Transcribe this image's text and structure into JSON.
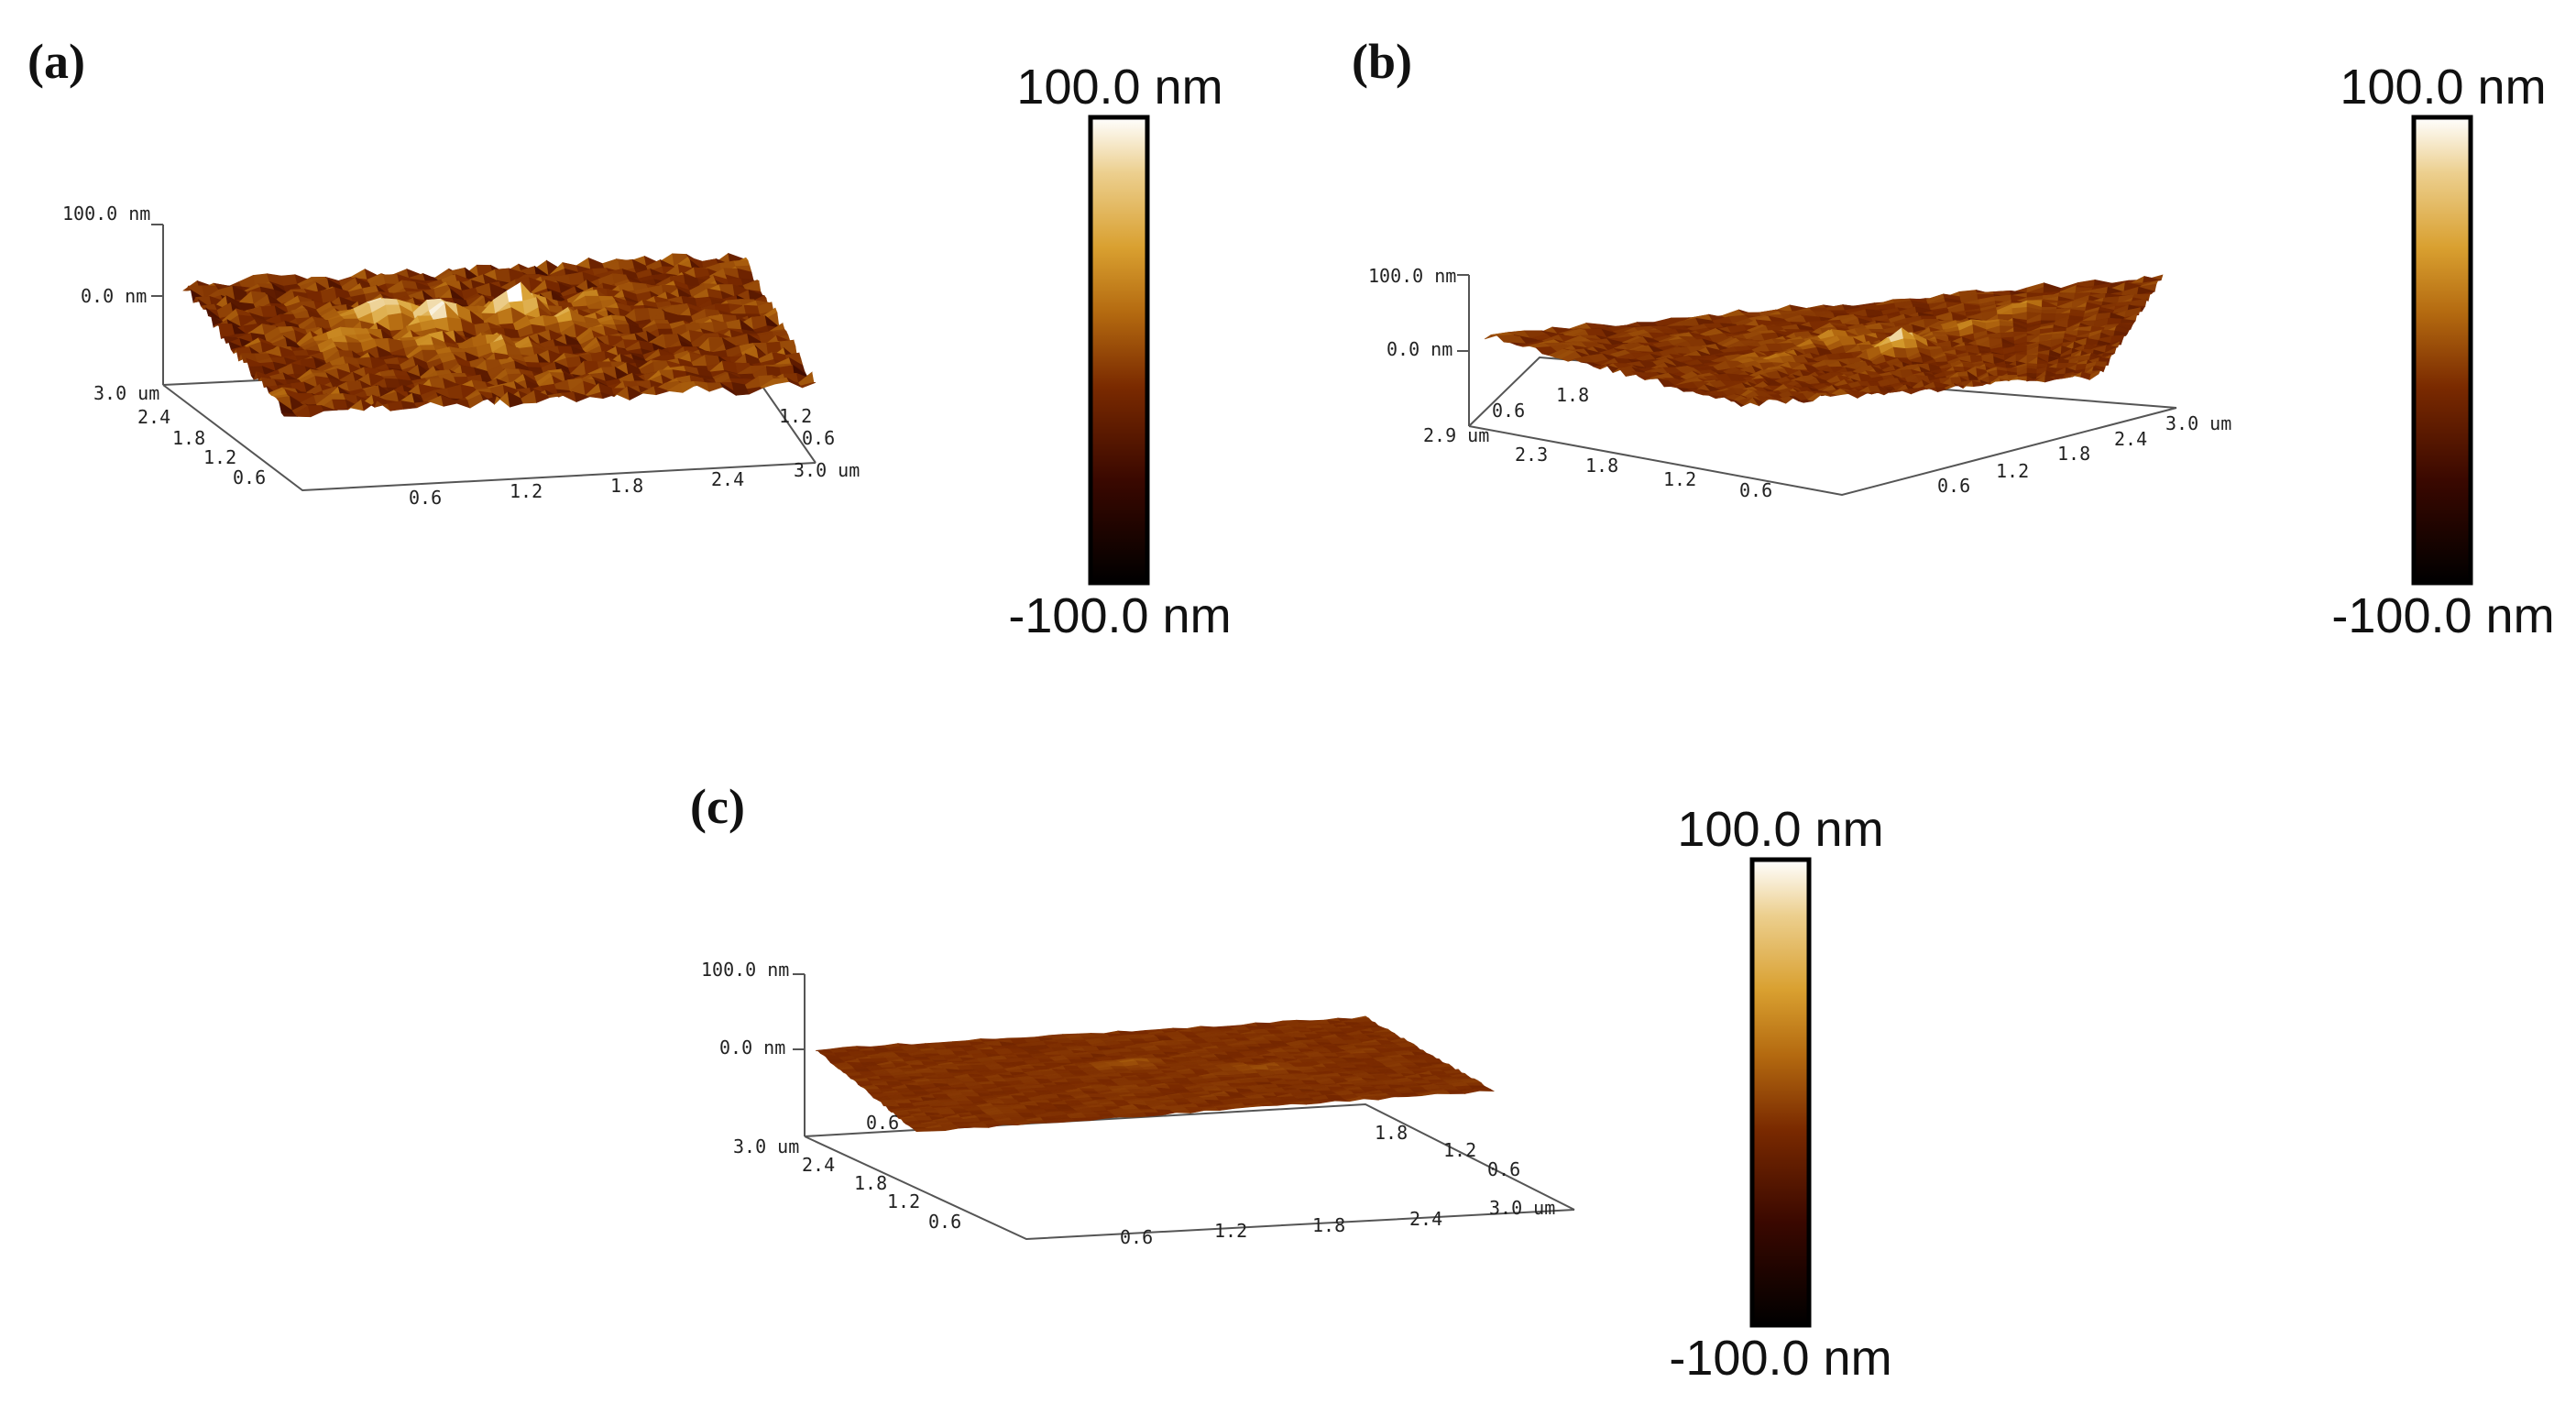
{
  "colormap": [
    "#000000",
    "#3a0800",
    "#7a2a00",
    "#b46a10",
    "#d9a030",
    "#eccf8e",
    "#ffffff"
  ],
  "panels": [
    {
      "label": "(a)",
      "z_top": "100.0 nm",
      "z_zero": "0.0 nm",
      "y_ticks": [
        "3.0 um",
        "2.4",
        "1.8",
        "1.2",
        "0.6"
      ],
      "x_ticks": [
        "0.6",
        "1.2",
        "1.8",
        "2.4",
        "3.0 um"
      ],
      "back_ticks": [
        "1.2",
        "0.6"
      ],
      "scale_top": "100.0 nm",
      "scale_bottom": "-100.0 nm",
      "roughness": 1.0
    },
    {
      "label": "(b)",
      "z_top": "100.0 nm",
      "z_zero": "0.0 nm",
      "y_ticks": [
        "2.9 um",
        "2.3",
        "1.8",
        "1.2",
        "0.6"
      ],
      "x_ticks": [
        "0.6",
        "1.2",
        "1.8",
        "2.4",
        "3.0 um"
      ],
      "back_ticks": [
        "0.6",
        "1.8"
      ],
      "scale_top": "100.0 nm",
      "scale_bottom": "-100.0 nm",
      "roughness": 0.6
    },
    {
      "label": "(c)",
      "z_top": "100.0 nm",
      "z_zero": "0.0 nm",
      "y_ticks": [
        "3.0 um",
        "2.4",
        "1.8",
        "1.2",
        "0.6"
      ],
      "x_ticks": [
        "0.6",
        "1.2",
        "1.8",
        "2.4",
        "3.0 um"
      ],
      "back_ticks": [
        "1.8",
        "1.2",
        "0.6",
        "0.6"
      ],
      "scale_top": "100.0 nm",
      "scale_bottom": "-100.0 nm",
      "roughness": 0.25
    }
  ]
}
